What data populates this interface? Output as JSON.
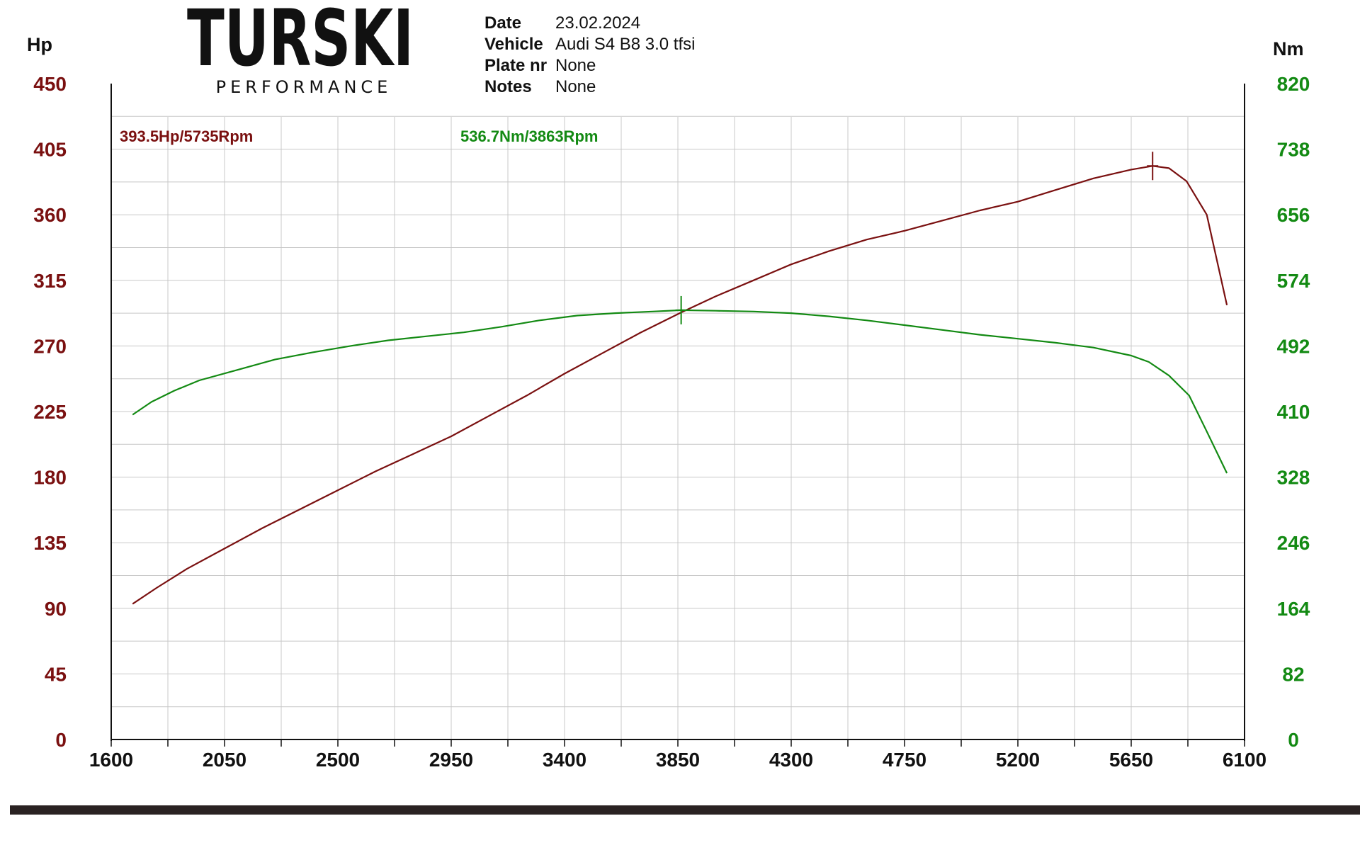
{
  "logo": {
    "main": "TURSKI",
    "sub": "PERFORMANCE"
  },
  "info": [
    {
      "key": "Date",
      "value": "23.02.2024"
    },
    {
      "key": "Vehicle",
      "value": "Audi S4 B8 3.0 tfsi"
    },
    {
      "key": "Plate nr",
      "value": "None"
    },
    {
      "key": "Notes",
      "value": "None"
    }
  ],
  "colors": {
    "power": "#7a1010",
    "torque": "#138a13",
    "grid": "#c8c8c8",
    "axis": "#111111"
  },
  "chart_data": {
    "type": "line",
    "xlabel": "",
    "left_unit": "Hp",
    "right_unit": "Nm",
    "xlim": [
      1600,
      6100
    ],
    "ylim_left": [
      0,
      450
    ],
    "ylim_right": [
      0,
      820
    ],
    "x_ticks": [
      "1600",
      "2050",
      "2500",
      "2950",
      "3400",
      "3850",
      "4300",
      "4750",
      "5200",
      "5650",
      "6100"
    ],
    "left_ticks": [
      "450",
      "405",
      "360",
      "315",
      "270",
      "225",
      "180",
      "135",
      "90",
      "45",
      "0"
    ],
    "right_ticks": [
      "820",
      "738",
      "656",
      "574",
      "492",
      "410",
      "328",
      "246",
      "164",
      "82",
      "0"
    ],
    "grid": true,
    "series": [
      {
        "name": "Hp",
        "axis": "left",
        "color": "#7a1010",
        "points": [
          [
            1685,
            93
          ],
          [
            1780,
            104
          ],
          [
            1900,
            117
          ],
          [
            2050,
            131
          ],
          [
            2200,
            145
          ],
          [
            2350,
            158
          ],
          [
            2500,
            171
          ],
          [
            2650,
            184
          ],
          [
            2800,
            196
          ],
          [
            2950,
            208
          ],
          [
            3100,
            222
          ],
          [
            3250,
            236
          ],
          [
            3400,
            251
          ],
          [
            3550,
            265
          ],
          [
            3700,
            279
          ],
          [
            3863,
            293
          ],
          [
            4000,
            304
          ],
          [
            4150,
            315
          ],
          [
            4300,
            326
          ],
          [
            4450,
            335
          ],
          [
            4600,
            343
          ],
          [
            4750,
            349
          ],
          [
            4900,
            356
          ],
          [
            5050,
            363
          ],
          [
            5200,
            369
          ],
          [
            5350,
            377
          ],
          [
            5500,
            385
          ],
          [
            5650,
            391
          ],
          [
            5735,
            393.5
          ],
          [
            5800,
            392
          ],
          [
            5870,
            383
          ],
          [
            5950,
            360
          ],
          [
            6030,
            298
          ]
        ]
      },
      {
        "name": "Nm",
        "axis": "right",
        "color": "#138a13",
        "points": [
          [
            1685,
            406
          ],
          [
            1760,
            422
          ],
          [
            1850,
            436
          ],
          [
            1950,
            449
          ],
          [
            2100,
            462
          ],
          [
            2250,
            475
          ],
          [
            2400,
            484
          ],
          [
            2550,
            492
          ],
          [
            2700,
            499
          ],
          [
            2850,
            504
          ],
          [
            3000,
            509
          ],
          [
            3150,
            516
          ],
          [
            3300,
            524
          ],
          [
            3450,
            530
          ],
          [
            3600,
            533
          ],
          [
            3750,
            535
          ],
          [
            3863,
            536.7
          ],
          [
            4000,
            536
          ],
          [
            4150,
            535
          ],
          [
            4300,
            533
          ],
          [
            4450,
            529
          ],
          [
            4600,
            524
          ],
          [
            4750,
            518
          ],
          [
            4900,
            512
          ],
          [
            5050,
            506
          ],
          [
            5200,
            501
          ],
          [
            5350,
            496
          ],
          [
            5500,
            490
          ],
          [
            5650,
            480
          ],
          [
            5720,
            472
          ],
          [
            5800,
            455
          ],
          [
            5880,
            430
          ],
          [
            5950,
            385
          ],
          [
            6030,
            333
          ]
        ]
      }
    ],
    "annotations": [
      {
        "label": "393.5Hp/5735Rpm",
        "series": "Hp",
        "x": 5735,
        "y": 393.5
      },
      {
        "label": "536.7Nm/3863Rpm",
        "series": "Nm",
        "x": 3863,
        "y": 536.7
      }
    ]
  }
}
